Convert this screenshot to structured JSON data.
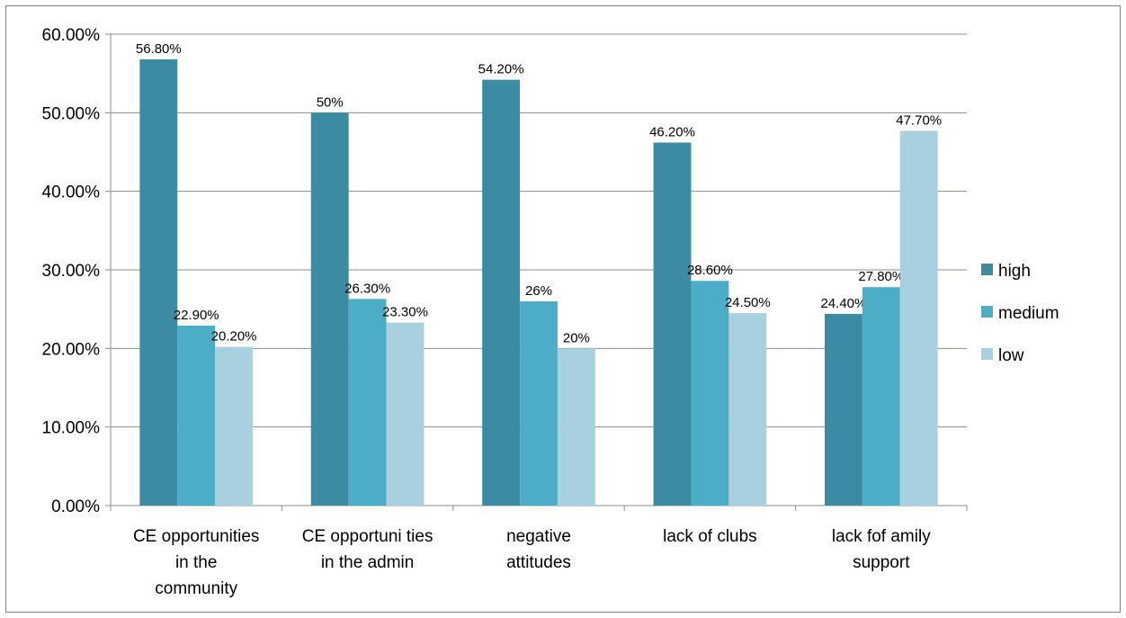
{
  "chart_data": {
    "type": "bar",
    "categories": [
      [
        "CE opportunities",
        "in the",
        "community"
      ],
      [
        "CE opportuni ties",
        "in the admin"
      ],
      [
        "negative",
        "attitudes"
      ],
      [
        "lack of clubs"
      ],
      [
        "lack fof amily",
        "support"
      ]
    ],
    "series": [
      {
        "name": "high",
        "color": "#3b8ba3",
        "values": [
          56.8,
          50,
          54.2,
          46.2,
          24.4
        ],
        "labels": [
          "56.80%",
          "50%",
          "54.20%",
          "46.20%",
          "24.40%"
        ]
      },
      {
        "name": "medium",
        "color": "#4badc6",
        "values": [
          22.9,
          26.3,
          26,
          28.6,
          27.8
        ],
        "labels": [
          "22.90%",
          "26.30%",
          "26%",
          "28.60%",
          "27.80%"
        ]
      },
      {
        "name": "low",
        "color": "#a9d0de",
        "values": [
          20.2,
          23.3,
          20,
          24.5,
          47.7
        ],
        "labels": [
          "20.20%",
          "23.30%",
          "20%",
          "24.50%",
          "47.70%"
        ]
      }
    ],
    "ylim": [
      0,
      60
    ],
    "yticks": [
      0,
      10,
      20,
      30,
      40,
      50,
      60
    ],
    "ytick_labels": [
      "0.00%",
      "10.00%",
      "20.00%",
      "30.00%",
      "40.00%",
      "50.00%",
      "60.00%"
    ],
    "grid": true,
    "legend_position": "right",
    "title": "",
    "xlabel": "",
    "ylabel": ""
  }
}
